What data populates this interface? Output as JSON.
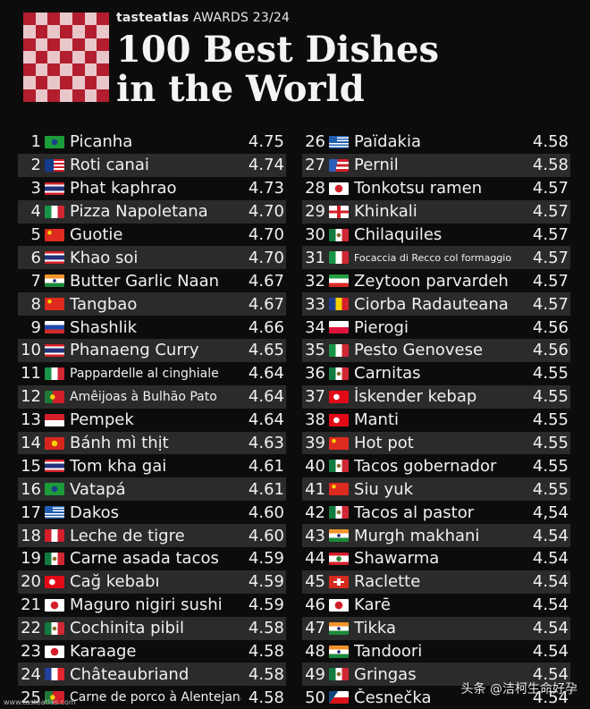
{
  "header": {
    "brand": "tasteatlas",
    "awards": "AWARDS 23/24",
    "title": "100 Best Dishes\nin the World"
  },
  "dishes": [
    {
      "rank": "1",
      "name": "Picanha",
      "score": "4.75",
      "flag": "brazil"
    },
    {
      "rank": "2",
      "name": "Roti canai",
      "score": "4.74",
      "flag": "malaysia"
    },
    {
      "rank": "3",
      "name": "Phat kaphrao",
      "score": "4.73",
      "flag": "thailand"
    },
    {
      "rank": "4",
      "name": "Pizza Napoletana",
      "score": "4.70",
      "flag": "italy"
    },
    {
      "rank": "5",
      "name": "Guotie",
      "score": "4.70",
      "flag": "china"
    },
    {
      "rank": "6",
      "name": "Khao soi",
      "score": "4.70",
      "flag": "thailand"
    },
    {
      "rank": "7",
      "name": "Butter Garlic Naan",
      "score": "4.67",
      "flag": "india"
    },
    {
      "rank": "8",
      "name": "Tangbao",
      "score": "4.67",
      "flag": "china"
    },
    {
      "rank": "9",
      "name": "Shashlik",
      "score": "4.66",
      "flag": "russia"
    },
    {
      "rank": "10",
      "name": "Phanaeng Curry",
      "score": "4.65",
      "flag": "thailand"
    },
    {
      "rank": "11",
      "name": "Pappardelle al cinghiale",
      "score": "4.64",
      "flag": "italy"
    },
    {
      "rank": "12",
      "name": "Amêijoas à Bulhão Pato",
      "score": "4.64",
      "flag": "portugal"
    },
    {
      "rank": "13",
      "name": "Pempek",
      "score": "4.64",
      "flag": "indonesia"
    },
    {
      "rank": "14",
      "name": "Bánh mì thịt",
      "score": "4.63",
      "flag": "vietnam"
    },
    {
      "rank": "15",
      "name": "Tom kha gai",
      "score": "4.61",
      "flag": "thailand"
    },
    {
      "rank": "16",
      "name": "Vatapá",
      "score": "4.61",
      "flag": "brazil"
    },
    {
      "rank": "17",
      "name": "Dakos",
      "score": "4.60",
      "flag": "greece"
    },
    {
      "rank": "18",
      "name": "Leche de tigre",
      "score": "4.60",
      "flag": "peru"
    },
    {
      "rank": "19",
      "name": "Carne asada tacos",
      "score": "4.59",
      "flag": "mexico"
    },
    {
      "rank": "20",
      "name": "Cağ kebabı",
      "score": "4.59",
      "flag": "turkey"
    },
    {
      "rank": "21",
      "name": "Maguro nigiri sushi",
      "score": "4.59",
      "flag": "japan"
    },
    {
      "rank": "22",
      "name": "Cochinita pibil",
      "score": "4.58",
      "flag": "mexico"
    },
    {
      "rank": "23",
      "name": "Karaage",
      "score": "4.58",
      "flag": "japan"
    },
    {
      "rank": "24",
      "name": "Châteaubriand",
      "score": "4.58",
      "flag": "france"
    },
    {
      "rank": "25",
      "name": "Carne de porco à Alentejana",
      "score": "4.58",
      "flag": "portugal"
    },
    {
      "rank": "26",
      "name": "Païdakia",
      "score": "4.58",
      "flag": "greece"
    },
    {
      "rank": "27",
      "name": "Pernil",
      "score": "4.58",
      "flag": "puertorico"
    },
    {
      "rank": "28",
      "name": "Tonkotsu ramen",
      "score": "4.57",
      "flag": "japan"
    },
    {
      "rank": "29",
      "name": "Khinkali",
      "score": "4.57",
      "flag": "georgia"
    },
    {
      "rank": "30",
      "name": "Chilaquiles",
      "score": "4.57",
      "flag": "mexico"
    },
    {
      "rank": "31",
      "name": "Focaccia di Recco col formaggio",
      "score": "4.57",
      "flag": "italy"
    },
    {
      "rank": "32",
      "name": "Zeytoon parvardeh",
      "score": "4.57",
      "flag": "iran"
    },
    {
      "rank": "33",
      "name": "Ciorba Radauteana",
      "score": "4.57",
      "flag": "romania"
    },
    {
      "rank": "34",
      "name": "Pierogi",
      "score": "4.56",
      "flag": "poland"
    },
    {
      "rank": "35",
      "name": "Pesto Genovese",
      "score": "4.56",
      "flag": "italy"
    },
    {
      "rank": "36",
      "name": "Carnitas",
      "score": "4.55",
      "flag": "mexico"
    },
    {
      "rank": "37",
      "name": "İskender kebap",
      "score": "4.55",
      "flag": "turkey"
    },
    {
      "rank": "38",
      "name": "Manti",
      "score": "4.55",
      "flag": "turkey"
    },
    {
      "rank": "39",
      "name": "Hot pot",
      "score": "4.55",
      "flag": "china"
    },
    {
      "rank": "40",
      "name": "Tacos gobernador",
      "score": "4.55",
      "flag": "mexico"
    },
    {
      "rank": "41",
      "name": "Siu yuk",
      "score": "4.55",
      "flag": "china"
    },
    {
      "rank": "42",
      "name": "Tacos al pastor",
      "score": "4,54",
      "flag": "mexico"
    },
    {
      "rank": "43",
      "name": "Murgh makhani",
      "score": "4.54",
      "flag": "india"
    },
    {
      "rank": "44",
      "name": "Shawarma",
      "score": "4.54",
      "flag": "lebanon"
    },
    {
      "rank": "45",
      "name": "Raclette",
      "score": "4.54",
      "flag": "switzerland"
    },
    {
      "rank": "46",
      "name": "Karē",
      "score": "4.54",
      "flag": "japan"
    },
    {
      "rank": "47",
      "name": "Tikka",
      "score": "4.54",
      "flag": "india"
    },
    {
      "rank": "48",
      "name": "Tandoori",
      "score": "4.54",
      "flag": "india"
    },
    {
      "rank": "49",
      "name": "Gringas",
      "score": "4.54",
      "flag": "mexico"
    },
    {
      "rank": "50",
      "name": "Česnečka",
      "score": "4.54",
      "flag": "czechia"
    }
  ],
  "footer": {
    "source": "www.tasteatlas.com",
    "watermark": "头条 @洁柯生命好孕"
  }
}
